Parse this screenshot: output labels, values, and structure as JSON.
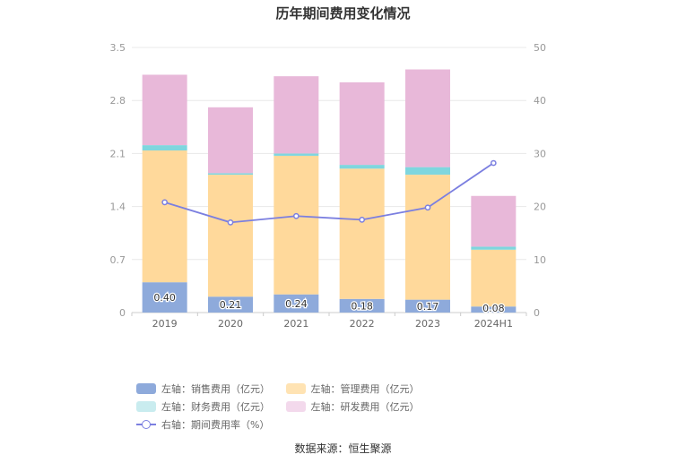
{
  "chart_data": {
    "type": "bar",
    "title": "历年期间费用变化情况",
    "categories": [
      "2019",
      "2020",
      "2021",
      "2022",
      "2023",
      "2024H1"
    ],
    "y_left": {
      "ticks": [
        "0",
        "0.7",
        "1.4",
        "2.1",
        "2.8",
        "3.5"
      ],
      "ylim": [
        0,
        3.5
      ]
    },
    "y_right": {
      "ticks": [
        "0",
        "10",
        "20",
        "30",
        "40",
        "50"
      ],
      "ylim": [
        0,
        50
      ]
    },
    "series": [
      {
        "name": "左轴：销售费用（亿元）",
        "color": "#8eaadb",
        "values": [
          0.4,
          0.21,
          0.24,
          0.18,
          0.17,
          0.08
        ],
        "labels": [
          "0.40",
          "0.21",
          "0.24",
          "0.18",
          "0.17",
          "0.08"
        ]
      },
      {
        "name": "左轴：管理费用（亿元）",
        "color": "#ffd99b",
        "values": [
          1.74,
          1.61,
          1.83,
          1.72,
          1.65,
          0.75
        ]
      },
      {
        "name": "左轴：财务费用（亿元）",
        "color": "#7fd6de",
        "values": [
          0.07,
          0.02,
          0.03,
          0.05,
          0.1,
          0.04
        ]
      },
      {
        "name": "左轴：研发费用（亿元）",
        "color": "#e8b8d9",
        "values": [
          0.93,
          0.87,
          1.02,
          1.09,
          1.29,
          0.67
        ]
      },
      {
        "name": "右轴：期间费用率（%）",
        "color": "#7b7fe0",
        "type": "line",
        "axis": "right",
        "values": [
          20.8,
          17.0,
          18.2,
          17.5,
          19.8,
          28.2
        ]
      }
    ],
    "grid": true,
    "legend": "bottom"
  },
  "legend_swatch_colors": [
    "#8eaadb",
    "#ffd99b",
    "#c9ecef",
    "#f3d9ec"
  ],
  "source": "数据来源：恒生聚源"
}
